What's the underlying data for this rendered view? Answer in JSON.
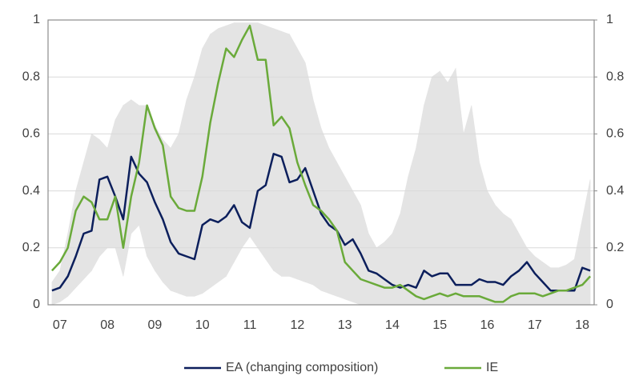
{
  "chart_data": {
    "type": "line",
    "categories": [
      null,
      "07",
      null,
      null,
      null,
      null,
      null,
      "08",
      null,
      null,
      null,
      null,
      null,
      "09",
      null,
      null,
      null,
      null,
      null,
      "10",
      null,
      null,
      null,
      null,
      null,
      "11",
      null,
      null,
      null,
      null,
      null,
      "12",
      null,
      null,
      null,
      null,
      null,
      "13",
      null,
      null,
      null,
      null,
      null,
      "14",
      null,
      null,
      null,
      null,
      null,
      "15",
      null,
      null,
      null,
      null,
      null,
      "16",
      null,
      null,
      null,
      null,
      null,
      "17",
      null,
      null,
      null,
      null,
      null,
      "18",
      null
    ],
    "series": [
      {
        "name": "EA (changing composition)",
        "color": "#0c1f5c",
        "values": [
          0.05,
          0.06,
          0.1,
          0.17,
          0.25,
          0.26,
          0.44,
          0.45,
          0.38,
          0.3,
          0.52,
          0.46,
          0.43,
          0.36,
          0.3,
          0.22,
          0.18,
          0.17,
          0.16,
          0.28,
          0.3,
          0.29,
          0.31,
          0.35,
          0.29,
          0.27,
          0.4,
          0.42,
          0.53,
          0.52,
          0.43,
          0.44,
          0.48,
          0.4,
          0.32,
          0.28,
          0.26,
          0.21,
          0.23,
          0.18,
          0.12,
          0.11,
          0.09,
          0.07,
          0.06,
          0.07,
          0.06,
          0.12,
          0.1,
          0.11,
          0.11,
          0.07,
          0.07,
          0.07,
          0.09,
          0.08,
          0.08,
          0.07,
          0.1,
          0.12,
          0.15,
          0.11,
          0.08,
          0.05,
          0.05,
          0.05,
          0.05,
          0.13,
          0.12
        ]
      },
      {
        "name": "IE",
        "color": "#6aaa3a",
        "values": [
          0.12,
          0.15,
          0.2,
          0.33,
          0.38,
          0.36,
          0.3,
          0.3,
          0.38,
          0.2,
          0.38,
          0.5,
          0.7,
          0.62,
          0.56,
          0.38,
          0.34,
          0.33,
          0.33,
          0.45,
          0.64,
          0.78,
          0.9,
          0.87,
          0.93,
          0.98,
          0.86,
          0.86,
          0.63,
          0.66,
          0.62,
          0.5,
          0.42,
          0.35,
          0.33,
          0.3,
          0.26,
          0.15,
          0.12,
          0.09,
          0.08,
          0.07,
          0.06,
          0.06,
          0.07,
          0.05,
          0.03,
          0.02,
          0.03,
          0.04,
          0.03,
          0.04,
          0.03,
          0.03,
          0.03,
          0.02,
          0.01,
          0.01,
          0.03,
          0.04,
          0.04,
          0.04,
          0.03,
          0.04,
          0.05,
          0.05,
          0.06,
          0.07,
          0.1
        ]
      }
    ],
    "range": {
      "color": "#e4e4e4",
      "lower": [
        0,
        0.01,
        0.03,
        0.06,
        0.09,
        0.12,
        0.17,
        0.2,
        0.2,
        0.1,
        0.25,
        0.28,
        0.17,
        0.12,
        0.08,
        0.05,
        0.04,
        0.03,
        0.03,
        0.04,
        0.06,
        0.08,
        0.1,
        0.15,
        0.2,
        0.24,
        0.2,
        0.16,
        0.12,
        0.1,
        0.1,
        0.09,
        0.08,
        0.07,
        0.05,
        0.04,
        0.03,
        0.02,
        0.01,
        0,
        0,
        0,
        0,
        0,
        0,
        0,
        0,
        0,
        0,
        0,
        0,
        0,
        0,
        0,
        0,
        0,
        0,
        0,
        0,
        0,
        0,
        0,
        0,
        0,
        0,
        0,
        0,
        0,
        0
      ],
      "upper": [
        0.08,
        0.12,
        0.25,
        0.4,
        0.5,
        0.6,
        0.58,
        0.55,
        0.65,
        0.7,
        0.72,
        0.7,
        0.7,
        0.63,
        0.58,
        0.55,
        0.6,
        0.72,
        0.8,
        0.9,
        0.95,
        0.97,
        0.98,
        0.99,
        0.99,
        0.99,
        0.99,
        0.98,
        0.97,
        0.96,
        0.95,
        0.9,
        0.85,
        0.72,
        0.62,
        0.55,
        0.5,
        0.45,
        0.4,
        0.35,
        0.25,
        0.2,
        0.22,
        0.25,
        0.32,
        0.45,
        0.55,
        0.7,
        0.8,
        0.82,
        0.78,
        0.83,
        0.6,
        0.7,
        0.5,
        0.4,
        0.35,
        0.32,
        0.3,
        0.25,
        0.2,
        0.17,
        0.15,
        0.13,
        0.13,
        0.14,
        0.16,
        0.3,
        0.44
      ]
    },
    "ylim": [
      0,
      1
    ],
    "yticks": [
      0,
      0.2,
      0.4,
      0.6,
      0.8,
      1
    ],
    "y2lim": [
      0,
      1
    ],
    "y2ticks": [
      0,
      0.2,
      0.4,
      0.6,
      0.8,
      1
    ],
    "grid": true
  }
}
